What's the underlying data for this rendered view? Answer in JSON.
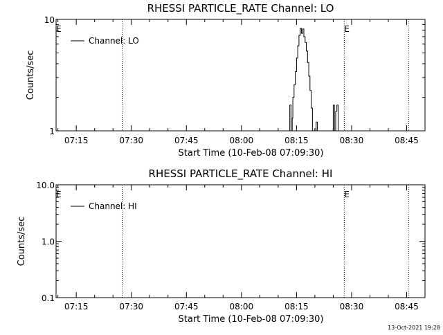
{
  "chart_data": [
    {
      "type": "line",
      "title": "RHESSI PARTICLE_RATE Channel: LO",
      "xlabel": "Start Time (10-Feb-08 07:09:30)",
      "ylabel": "Counts/sec",
      "yscale": "log",
      "ylim": [
        1,
        10
      ],
      "ytick_labels": [
        "1",
        "10"
      ],
      "xlim": [
        "07:09:30",
        "08:50:00"
      ],
      "xtick_labels": [
        "07:15",
        "07:30",
        "07:45",
        "08:00",
        "08:15",
        "08:30",
        "08:45"
      ],
      "legend": "top-left",
      "annotations": [
        {
          "text": "E",
          "x": "07:09:30"
        },
        {
          "text": "E",
          "x": "08:28:00"
        }
      ],
      "vlines": [
        "07:27:30",
        "08:28:00",
        "08:45:30"
      ],
      "series": [
        {
          "name": "Channel: LO",
          "x": [
            "08:13:00",
            "08:13:10",
            "08:13:30",
            "08:13:50",
            "08:14:00",
            "08:14:20",
            "08:14:40",
            "08:15:00",
            "08:15:20",
            "08:15:40",
            "08:16:00",
            "08:16:20",
            "08:16:40",
            "08:17:00",
            "08:17:20",
            "08:17:40",
            "08:18:00",
            "08:18:20",
            "08:18:40",
            "08:19:00",
            "08:19:20",
            "08:19:40",
            "08:20:00",
            "08:20:20",
            "08:20:40",
            "08:21:00",
            "08:21:20",
            "08:21:40",
            "08:22:00",
            "08:22:20",
            "08:25:00",
            "08:25:20",
            "08:25:40",
            "08:26:00",
            "08:26:20",
            "08:26:40"
          ],
          "values": [
            1,
            1.7,
            1,
            1.3,
            2,
            2.6,
            3.4,
            4.5,
            5.8,
            7.2,
            8.3,
            7.5,
            8.2,
            7.0,
            6.2,
            5.2,
            4.1,
            3.1,
            2.3,
            1.6,
            1,
            1,
            1,
            1.2,
            1,
            1,
            1,
            1,
            1,
            1,
            1.7,
            1,
            1.5,
            1.7,
            1,
            1
          ]
        }
      ]
    },
    {
      "type": "line",
      "title": "RHESSI PARTICLE_RATE Channel: HI",
      "xlabel": "Start Time (10-Feb-08 07:09:30)",
      "ylabel": "Counts/sec",
      "yscale": "log",
      "ylim": [
        0.1,
        10
      ],
      "ytick_labels": [
        "0.1",
        "1.0",
        "10.0"
      ],
      "xlim": [
        "07:09:30",
        "08:50:00"
      ],
      "xtick_labels": [
        "07:15",
        "07:30",
        "07:45",
        "08:00",
        "08:15",
        "08:30",
        "08:45"
      ],
      "legend": "top-left",
      "annotations": [
        {
          "text": "E",
          "x": "07:09:30"
        },
        {
          "text": "E",
          "x": "08:28:00"
        }
      ],
      "vlines": [
        "07:27:30",
        "08:28:00",
        "08:45:30"
      ],
      "series": [
        {
          "name": "Channel: HI",
          "x": [],
          "values": []
        }
      ]
    }
  ],
  "footer": "13-Oct-2021 19:28"
}
